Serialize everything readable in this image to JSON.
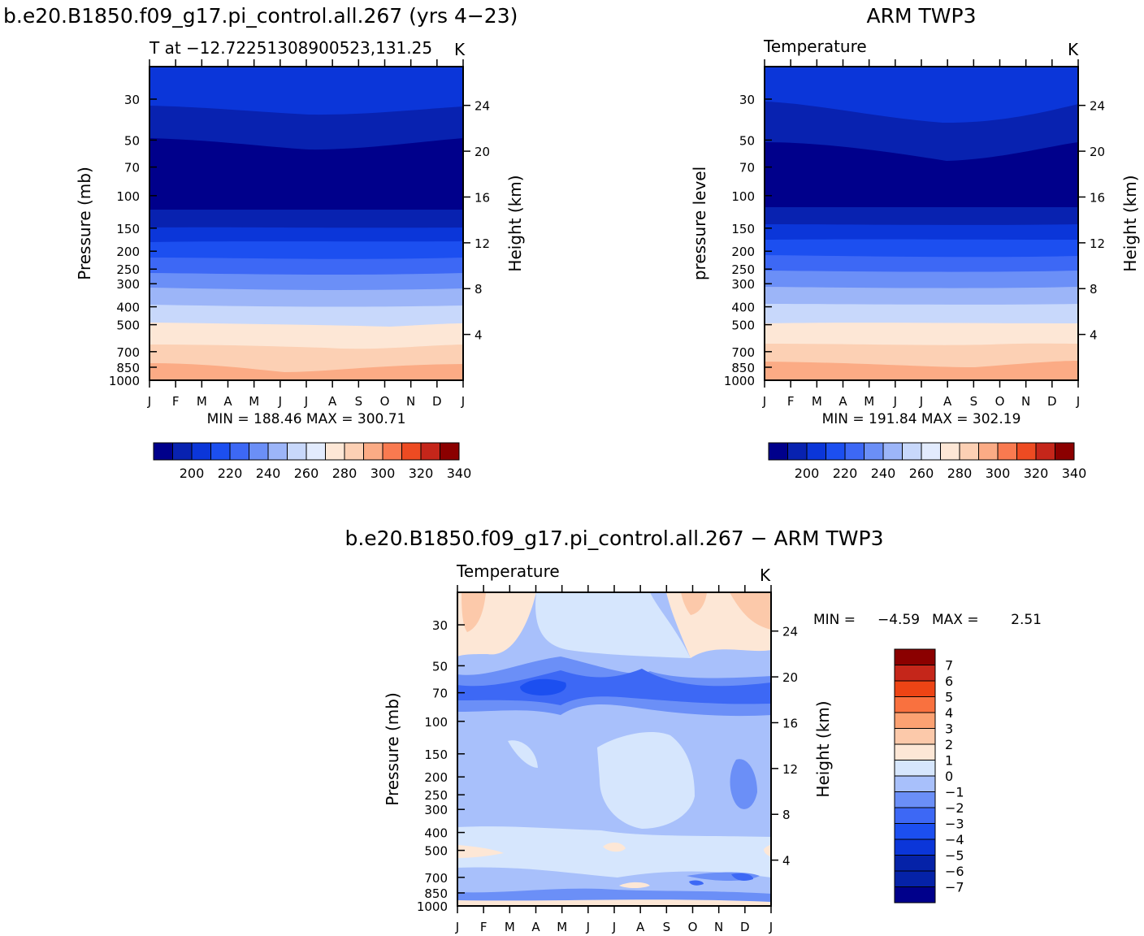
{
  "colors": {
    "abs_palette": [
      "#00008b",
      "#0822b0",
      "#0b36d9",
      "#1c4ff0",
      "#3d68f5",
      "#6b8ff7",
      "#9cb5f8",
      "#c8d8fb",
      "#e2ebfd",
      "#fde7d6",
      "#fcd0b4",
      "#fbab85",
      "#f97a50",
      "#ed4b22",
      "#c5261a",
      "#8b0000"
    ],
    "diff_palette": [
      "#00008b",
      "#0522a8",
      "#0b36d9",
      "#1c4ff0",
      "#3d68f5",
      "#6b8ff7",
      "#a8c0fb",
      "#d6e6fd",
      "#fde7d6",
      "#fcc9aa",
      "#fba172",
      "#f9713f",
      "#ed4415",
      "#c5261a",
      "#8b0000"
    ]
  },
  "shared_axes": {
    "pressure_ticks": [
      "30",
      "50",
      "70",
      "100",
      "150",
      "200",
      "250",
      "300",
      "400",
      "500",
      "700",
      "850",
      "1000"
    ],
    "pressure_values": [
      30,
      50,
      70,
      100,
      150,
      200,
      250,
      300,
      400,
      500,
      700,
      850,
      1000
    ],
    "height_ticks": [
      "24",
      "20",
      "16",
      "12",
      "8",
      "4"
    ],
    "height_values": [
      24,
      20,
      16,
      12,
      8,
      4
    ],
    "month_ticks": [
      "J",
      "F",
      "M",
      "A",
      "M",
      "J",
      "J",
      "A",
      "S",
      "O",
      "N",
      "D",
      "J"
    ],
    "abs_colorbar_labels": [
      "200",
      "220",
      "240",
      "260",
      "280",
      "300",
      "320",
      "340"
    ],
    "abs_colorbar_levels": [
      200,
      220,
      240,
      260,
      280,
      300,
      320,
      340
    ],
    "diff_colorbar_labels": [
      "7",
      "6",
      "5",
      "4",
      "3",
      "2",
      "1",
      "0",
      "−1",
      "−2",
      "−3",
      "−4",
      "−5",
      "−6",
      "−7"
    ]
  },
  "chart_data": [
    {
      "type": "heatmap",
      "figure_title": "b.e20.B1850.f09_g17.pi_control.all.267 (yrs 4−23)",
      "title": "T at −12.72251308900523,131.25",
      "units": "K",
      "ylabel": "Pressure (mb)",
      "y2label": "Height (km)",
      "stats": "MIN = 188.46 MAX = 300.71",
      "min": 188.46,
      "max": 300.71,
      "x": [
        "J",
        "F",
        "M",
        "A",
        "M",
        "J",
        "J",
        "A",
        "S",
        "O",
        "N",
        "D",
        "J"
      ],
      "ylim": [
        1000,
        20
      ],
      "contour_levels": [
        190,
        200,
        210,
        220,
        230,
        240,
        250,
        260,
        270,
        280,
        290,
        300,
        310,
        320,
        330,
        340,
        350
      ]
    },
    {
      "type": "heatmap",
      "figure_title": "ARM TWP3",
      "title": "Temperature",
      "units": "K",
      "ylabel": "pressure level",
      "y2label": "Height (km)",
      "stats": "MIN = 191.84 MAX = 302.19",
      "min": 191.84,
      "max": 302.19,
      "x": [
        "J",
        "F",
        "M",
        "A",
        "M",
        "J",
        "J",
        "A",
        "S",
        "O",
        "N",
        "D",
        "J"
      ],
      "ylim": [
        1000,
        20
      ],
      "contour_levels": [
        190,
        200,
        210,
        220,
        230,
        240,
        250,
        260,
        270,
        280,
        290,
        300,
        310,
        320,
        330,
        340,
        350
      ]
    },
    {
      "type": "heatmap",
      "figure_title": "b.e20.B1850.f09_g17.pi_control.all.267 − ARM TWP3",
      "title": "Temperature",
      "units": "K",
      "ylabel": "Pressure (mb)",
      "y2label": "Height (km)",
      "stats_min_label": "MIN =",
      "stats_min": "−4.59",
      "stats_max_label": "MAX =",
      "stats_max": "2.51",
      "min": -4.59,
      "max": 2.51,
      "x": [
        "J",
        "F",
        "M",
        "A",
        "M",
        "J",
        "J",
        "A",
        "S",
        "O",
        "N",
        "D",
        "J"
      ],
      "ylim": [
        1000,
        20
      ],
      "contour_levels": [
        -7,
        -6,
        -5,
        -4,
        -3,
        -2,
        -1,
        0,
        1,
        2,
        3,
        4,
        5,
        6,
        7
      ]
    }
  ]
}
